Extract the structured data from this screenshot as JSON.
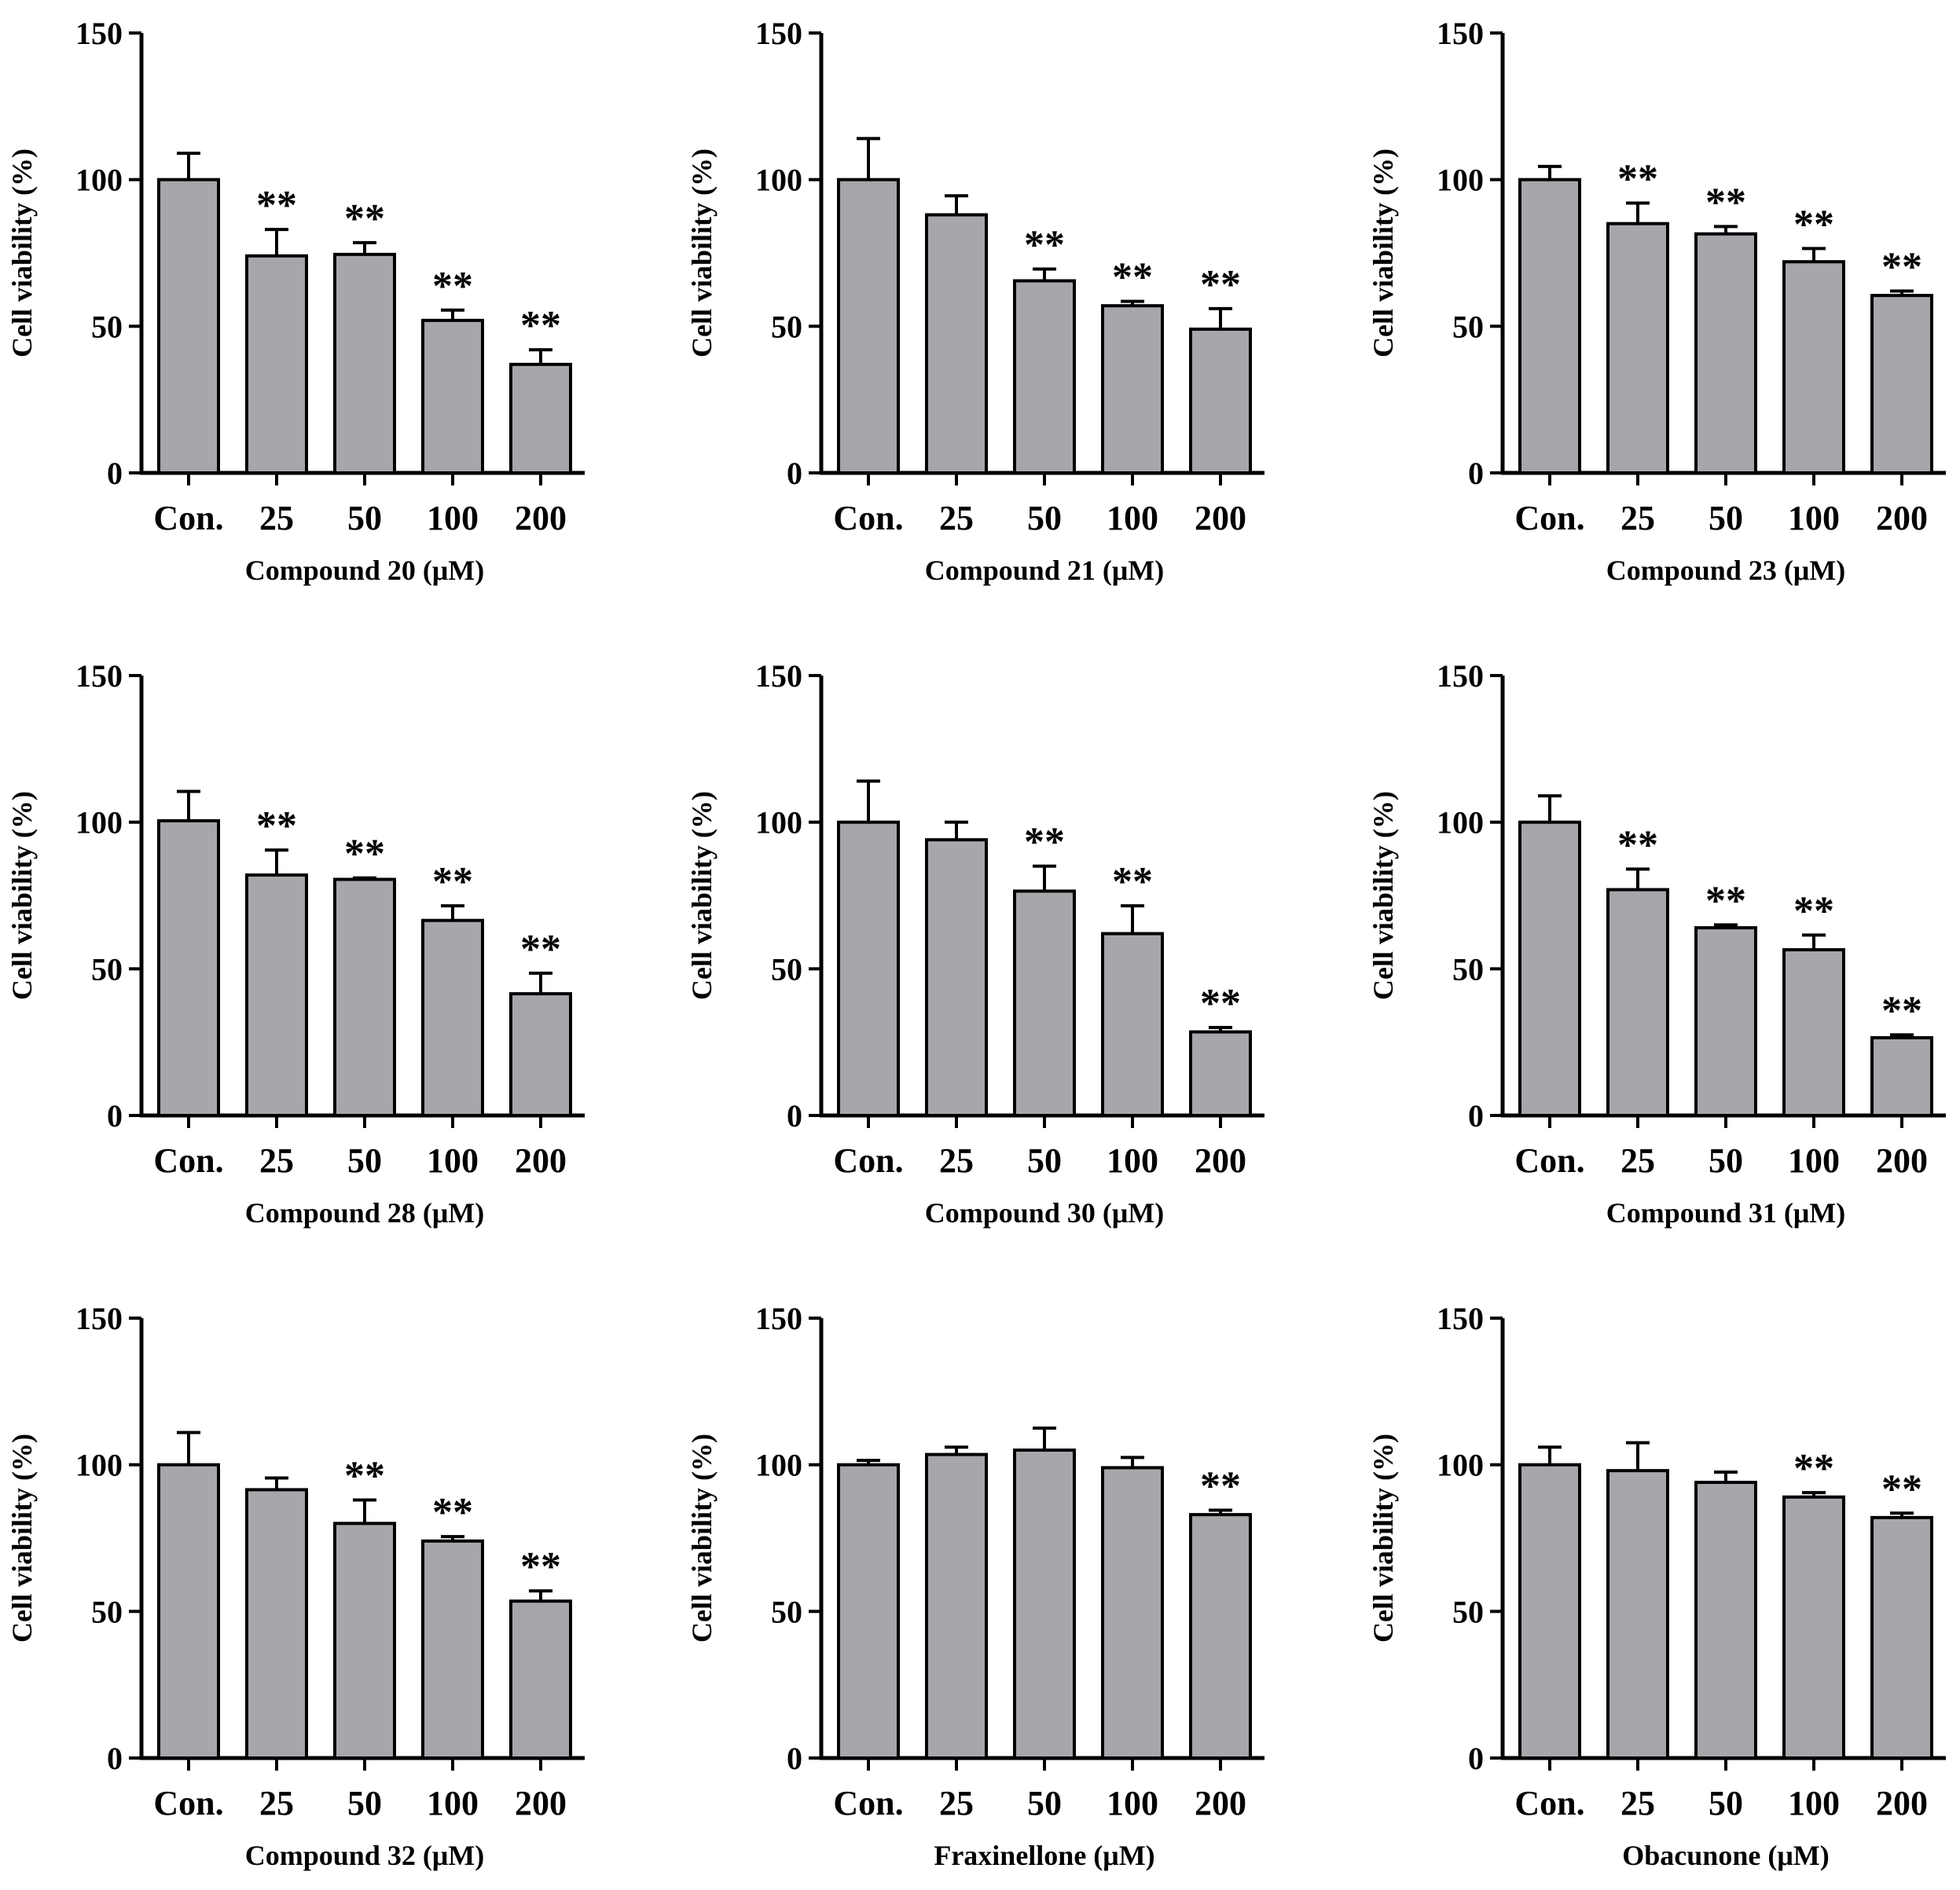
{
  "chart_data": [
    {
      "type": "bar",
      "xlabel": "Compound 20 (μM)",
      "ylabel": "Cell viability (%)",
      "categories": [
        "Con.",
        "25",
        "50",
        "100",
        "200"
      ],
      "values": [
        100,
        74,
        74.5,
        52,
        37
      ],
      "errors": [
        9,
        9,
        4,
        3.5,
        5
      ],
      "significance": [
        "",
        "**",
        "**",
        "**",
        "**"
      ],
      "ylim": [
        0,
        150
      ],
      "yticks": [
        "0",
        "50",
        "100",
        "150"
      ],
      "bar_color": "#a6a6ab",
      "grid": false
    },
    {
      "type": "bar",
      "xlabel": "Compound 21 (μM)",
      "ylabel": "Cell viability (%)",
      "categories": [
        "Con.",
        "25",
        "50",
        "100",
        "200"
      ],
      "values": [
        100,
        88,
        65.5,
        57,
        49
      ],
      "errors": [
        14,
        6.5,
        4,
        1.5,
        7
      ],
      "significance": [
        "",
        "",
        "**",
        "**",
        "**"
      ],
      "ylim": [
        0,
        150
      ],
      "yticks": [
        "0",
        "50",
        "100",
        "150"
      ],
      "bar_color": "#a6a6ab",
      "grid": false
    },
    {
      "type": "bar",
      "xlabel": "Compound 23 (μM)",
      "ylabel": "Cell viability (%)",
      "categories": [
        "Con.",
        "25",
        "50",
        "100",
        "200"
      ],
      "values": [
        100,
        85,
        81.5,
        72,
        60.5
      ],
      "errors": [
        4.5,
        7,
        2.5,
        4.5,
        1.5
      ],
      "significance": [
        "",
        "**",
        "**",
        "**",
        "**"
      ],
      "ylim": [
        0,
        150
      ],
      "yticks": [
        "0",
        "50",
        "100",
        "150"
      ],
      "bar_color": "#a6a6ab",
      "grid": false
    },
    {
      "type": "bar",
      "xlabel": "Compound 28 (μM)",
      "ylabel": "Cell viability (%)",
      "categories": [
        "Con.",
        "25",
        "50",
        "100",
        "200"
      ],
      "values": [
        100.5,
        82,
        80.5,
        66.5,
        41.5
      ],
      "errors": [
        10,
        8.5,
        0.5,
        5,
        7
      ],
      "significance": [
        "",
        "**",
        "**",
        "**",
        "**"
      ],
      "ylim": [
        0,
        150
      ],
      "yticks": [
        "0",
        "50",
        "100",
        "150"
      ],
      "bar_color": "#a6a6ab",
      "grid": false
    },
    {
      "type": "bar",
      "xlabel": "Compound 30 (μM)",
      "ylabel": "Cell viability (%)",
      "categories": [
        "Con.",
        "25",
        "50",
        "100",
        "200"
      ],
      "values": [
        100,
        94,
        76.5,
        62,
        28.5
      ],
      "errors": [
        14,
        6,
        8.5,
        9.5,
        1.5
      ],
      "significance": [
        "",
        "",
        "**",
        "**",
        "**"
      ],
      "ylim": [
        0,
        150
      ],
      "yticks": [
        "0",
        "50",
        "100",
        "150"
      ],
      "bar_color": "#a6a6ab",
      "grid": false
    },
    {
      "type": "bar",
      "xlabel": "Compound 31 (μM)",
      "ylabel": "Cell viability (%)",
      "categories": [
        "Con.",
        "25",
        "50",
        "100",
        "200"
      ],
      "values": [
        100,
        77,
        64,
        56.5,
        26.5
      ],
      "errors": [
        9,
        7,
        1,
        5,
        1
      ],
      "significance": [
        "",
        "**",
        "**",
        "**",
        "**"
      ],
      "ylim": [
        0,
        150
      ],
      "yticks": [
        "0",
        "50",
        "100",
        "150"
      ],
      "bar_color": "#a6a6ab",
      "grid": false
    },
    {
      "type": "bar",
      "xlabel": "Compound 32 (μM)",
      "ylabel": "Cell viability (%)",
      "categories": [
        "Con.",
        "25",
        "50",
        "100",
        "200"
      ],
      "values": [
        100,
        91.5,
        80,
        74,
        53.5
      ],
      "errors": [
        11,
        4,
        8,
        1.5,
        3.5
      ],
      "significance": [
        "",
        "",
        "**",
        "**",
        "**"
      ],
      "ylim": [
        0,
        150
      ],
      "yticks": [
        "0",
        "50",
        "100",
        "150"
      ],
      "bar_color": "#a6a6ab",
      "grid": false
    },
    {
      "type": "bar",
      "xlabel": "Fraxinellone (μM)",
      "ylabel": "Cell viability (%)",
      "categories": [
        "Con.",
        "25",
        "50",
        "100",
        "200"
      ],
      "values": [
        100,
        103.5,
        105,
        99,
        83
      ],
      "errors": [
        1.5,
        2.5,
        7.5,
        3.5,
        1.5
      ],
      "significance": [
        "",
        "",
        "",
        "",
        "**"
      ],
      "ylim": [
        0,
        150
      ],
      "yticks": [
        "0",
        "50",
        "100",
        "150"
      ],
      "bar_color": "#a6a6ab",
      "grid": false
    },
    {
      "type": "bar",
      "xlabel": "Obacunone (μM)",
      "ylabel": "Cell viability (%)",
      "categories": [
        "Con.",
        "25",
        "50",
        "100",
        "200"
      ],
      "values": [
        100,
        98,
        94,
        89,
        82
      ],
      "errors": [
        6,
        9.5,
        3.5,
        1.5,
        1.5
      ],
      "significance": [
        "",
        "",
        "",
        "**",
        "**"
      ],
      "ylim": [
        0,
        150
      ],
      "yticks": [
        "0",
        "50",
        "100",
        "150"
      ],
      "bar_color": "#a6a6ab",
      "grid": false
    }
  ]
}
